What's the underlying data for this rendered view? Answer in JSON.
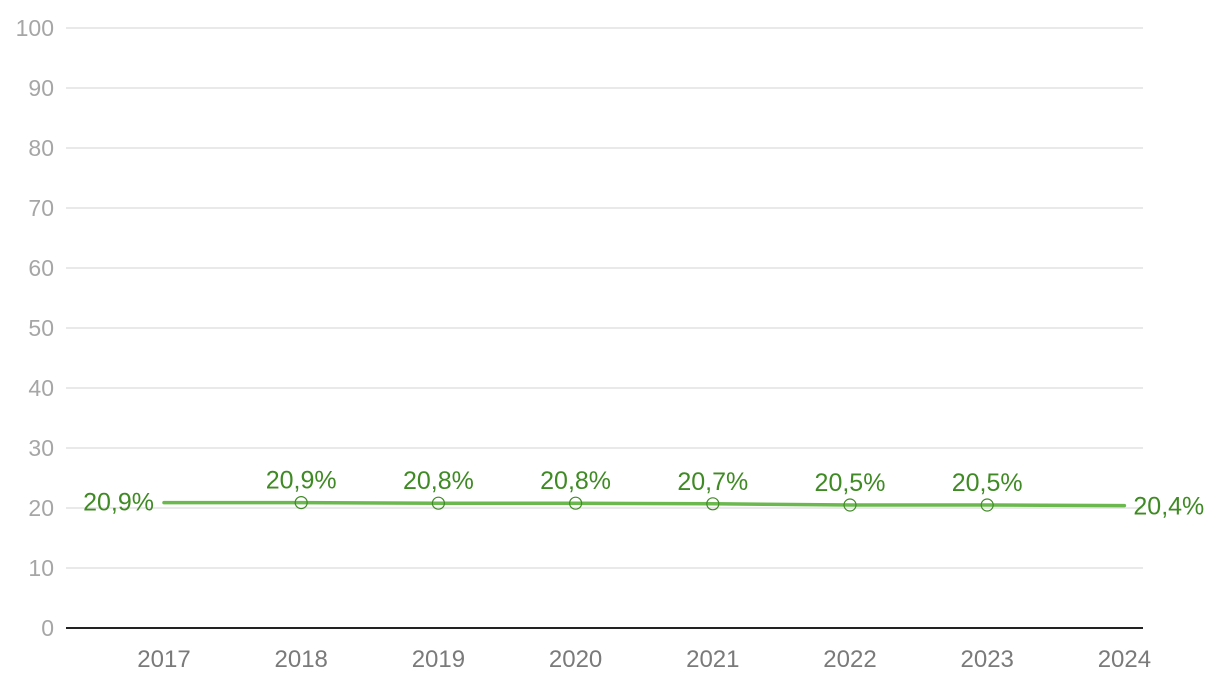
{
  "chart_data": {
    "type": "line",
    "categories": [
      "2017",
      "2018",
      "2019",
      "2020",
      "2021",
      "2022",
      "2023",
      "2024"
    ],
    "series": [
      {
        "values": [
          20.9,
          20.9,
          20.8,
          20.8,
          20.7,
          20.5,
          20.5,
          20.4
        ],
        "data_labels": [
          "20,9%",
          "20,9%",
          "20,8%",
          "20,8%",
          "20,7%",
          "20,5%",
          "20,5%",
          "20,4%"
        ],
        "color": "#6bb84f",
        "label_color": "#3f8a24"
      }
    ],
    "y_ticks": [
      "0",
      "10",
      "20",
      "30",
      "40",
      "50",
      "60",
      "70",
      "80",
      "90",
      "100"
    ],
    "ylim": [
      0,
      100
    ],
    "title": "",
    "xlabel": "",
    "ylabel": "",
    "grid": true,
    "legend": "none"
  }
}
